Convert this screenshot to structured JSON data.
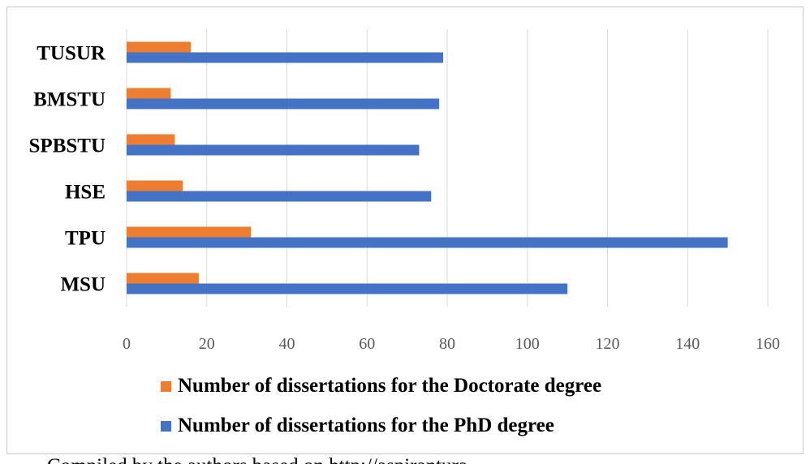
{
  "chart_data": {
    "type": "bar",
    "orientation": "horizontal",
    "categories": [
      "MSU",
      "TPU",
      "HSE",
      "SPBSTU",
      "BMSTU",
      "TUSUR"
    ],
    "series": [
      {
        "name": "Number of dissertations for the Doctorate degree",
        "color": "#ed7d31",
        "values": [
          18,
          31,
          14,
          12,
          11,
          16
        ]
      },
      {
        "name": "Number of dissertations for the PhD degree",
        "color": "#4472c4",
        "values": [
          110,
          150,
          76,
          73,
          78,
          79
        ]
      }
    ],
    "xlim": [
      0,
      160
    ],
    "xticks": [
      0,
      20,
      40,
      60,
      80,
      100,
      120,
      140,
      160
    ],
    "grid": "vertical",
    "legend_position": "bottom"
  },
  "caption": "Compiled by the authors based on http://aspirantura"
}
